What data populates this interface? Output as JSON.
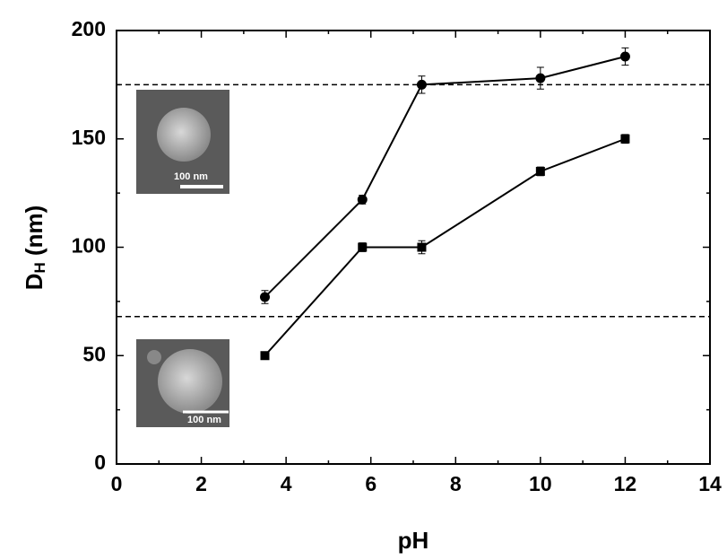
{
  "chart_data": {
    "type": "line",
    "xlabel": "pH",
    "ylabel": [
      "D",
      "H",
      " (nm)"
    ],
    "xlim": [
      0,
      14
    ],
    "xticks": [
      0,
      2,
      4,
      6,
      8,
      10,
      12,
      14
    ],
    "xminorticks": [
      1,
      3,
      5,
      7,
      9,
      11,
      13
    ],
    "ylim": [
      0,
      200
    ],
    "yticks": [
      0,
      50,
      100,
      150,
      200
    ],
    "yminorticks": [
      25,
      75,
      125,
      175
    ],
    "reference_lines": [
      175,
      68
    ],
    "series": [
      {
        "marker": "circle",
        "color": "#000000",
        "x": [
          3.5,
          5.8,
          7.2,
          10,
          12
        ],
        "values": [
          77,
          122,
          175,
          178,
          188
        ],
        "errors": [
          3,
          2,
          4,
          5,
          4
        ]
      },
      {
        "marker": "square",
        "color": "#000000",
        "x": [
          3.5,
          5.8,
          7.2,
          10,
          12
        ],
        "values": [
          50,
          100,
          100,
          135,
          150
        ],
        "errors": [
          1,
          2,
          3,
          2,
          2
        ]
      }
    ],
    "insets": [
      "100 nm",
      "100 nm"
    ]
  }
}
